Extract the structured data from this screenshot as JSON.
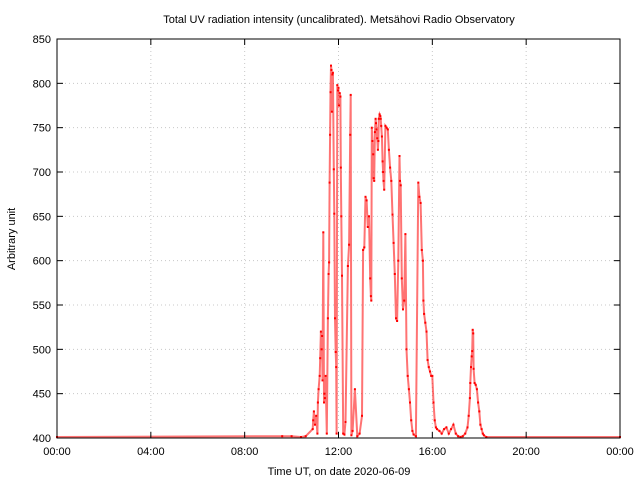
{
  "chart_data": {
    "type": "scatter",
    "title": "Total UV radiation intensity (uncalibrated). Metsähovi Radio Observatory",
    "xlabel": "Time UT, on date 2020-06-09",
    "ylabel": "Arbitrary unit",
    "xlim": [
      0,
      24
    ],
    "ylim": [
      400,
      850
    ],
    "x_ticks": [
      {
        "value": 0,
        "label": "00:00"
      },
      {
        "value": 4,
        "label": "04:00"
      },
      {
        "value": 8,
        "label": "08:00"
      },
      {
        "value": 12,
        "label": "12:00"
      },
      {
        "value": 16,
        "label": "16:00"
      },
      {
        "value": 20,
        "label": "20:00"
      },
      {
        "value": 24,
        "label": "00:00"
      }
    ],
    "y_ticks": [
      400,
      450,
      500,
      550,
      600,
      650,
      700,
      750,
      800,
      850
    ],
    "grid": true,
    "marker_color": "#ff0000",
    "series": [
      {
        "points": [
          [
            0.0,
            401
          ],
          [
            9.6,
            402
          ],
          [
            10.0,
            402
          ],
          [
            10.4,
            401
          ],
          [
            10.6,
            402
          ],
          [
            10.9,
            410
          ],
          [
            10.92,
            420
          ],
          [
            10.95,
            430
          ],
          [
            11.0,
            415
          ],
          [
            11.05,
            425
          ],
          [
            11.1,
            405
          ],
          [
            11.12,
            440
          ],
          [
            11.15,
            455
          ],
          [
            11.2,
            470
          ],
          [
            11.22,
            490
          ],
          [
            11.25,
            520
          ],
          [
            11.28,
            500
          ],
          [
            11.3,
            515
          ],
          [
            11.32,
            465
          ],
          [
            11.35,
            632
          ],
          [
            11.38,
            440
          ],
          [
            11.4,
            450
          ],
          [
            11.42,
            445
          ],
          [
            11.45,
            470
          ],
          [
            11.5,
            405
          ],
          [
            11.55,
            535
          ],
          [
            11.58,
            585
          ],
          [
            11.6,
            598
          ],
          [
            11.62,
            688
          ],
          [
            11.64,
            742
          ],
          [
            11.66,
            790
          ],
          [
            11.68,
            820
          ],
          [
            11.7,
            815
          ],
          [
            11.72,
            768
          ],
          [
            11.74,
            810
          ],
          [
            11.76,
            812
          ],
          [
            11.8,
            703
          ],
          [
            11.82,
            653
          ],
          [
            11.85,
            535
          ],
          [
            11.88,
            497
          ],
          [
            11.9,
            480
          ],
          [
            11.92,
            405
          ],
          [
            11.95,
            798
          ],
          [
            11.98,
            792
          ],
          [
            12.0,
            795
          ],
          [
            12.02,
            775
          ],
          [
            12.05,
            789
          ],
          [
            12.08,
            785
          ],
          [
            12.1,
            705
          ],
          [
            12.12,
            650
          ],
          [
            12.15,
            583
          ],
          [
            12.2,
            405
          ],
          [
            12.25,
            404
          ],
          [
            12.3,
            418
          ],
          [
            12.4,
            594
          ],
          [
            12.45,
            618
          ],
          [
            12.5,
            742
          ],
          [
            12.52,
            787
          ],
          [
            12.55,
            403
          ],
          [
            12.6,
            408
          ],
          [
            12.7,
            455
          ],
          [
            12.8,
            402
          ],
          [
            12.9,
            405
          ],
          [
            13.0,
            425
          ],
          [
            13.05,
            612
          ],
          [
            13.1,
            615
          ],
          [
            13.15,
            672
          ],
          [
            13.2,
            668
          ],
          [
            13.25,
            638
          ],
          [
            13.3,
            650
          ],
          [
            13.35,
            580
          ],
          [
            13.38,
            560
          ],
          [
            13.4,
            555
          ],
          [
            13.42,
            750
          ],
          [
            13.45,
            735
          ],
          [
            13.48,
            720
          ],
          [
            13.5,
            693
          ],
          [
            13.52,
            690
          ],
          [
            13.55,
            745
          ],
          [
            13.58,
            760
          ],
          [
            13.6,
            755
          ],
          [
            13.62,
            748
          ],
          [
            13.65,
            738
          ],
          [
            13.68,
            725
          ],
          [
            13.7,
            735
          ],
          [
            13.72,
            760
          ],
          [
            13.75,
            765
          ],
          [
            13.78,
            763
          ],
          [
            13.8,
            760
          ],
          [
            13.82,
            752
          ],
          [
            13.85,
            740
          ],
          [
            13.88,
            712
          ],
          [
            13.9,
            700
          ],
          [
            13.92,
            690
          ],
          [
            13.95,
            680
          ],
          [
            14.0,
            752
          ],
          [
            14.05,
            750
          ],
          [
            14.1,
            748
          ],
          [
            14.15,
            725
          ],
          [
            14.2,
            705
          ],
          [
            14.25,
            690
          ],
          [
            14.3,
            652
          ],
          [
            14.35,
            620
          ],
          [
            14.4,
            585
          ],
          [
            14.45,
            535
          ],
          [
            14.5,
            532
          ],
          [
            14.55,
            600
          ],
          [
            14.6,
            718
          ],
          [
            14.62,
            690
          ],
          [
            14.65,
            685
          ],
          [
            14.7,
            580
          ],
          [
            14.75,
            545
          ],
          [
            14.8,
            555
          ],
          [
            14.85,
            630
          ],
          [
            14.9,
            500
          ],
          [
            14.95,
            470
          ],
          [
            15.0,
            455
          ],
          [
            15.05,
            440
          ],
          [
            15.1,
            420
          ],
          [
            15.15,
            408
          ],
          [
            15.2,
            404
          ],
          [
            15.3,
            402
          ],
          [
            15.4,
            688
          ],
          [
            15.45,
            672
          ],
          [
            15.5,
            665
          ],
          [
            15.55,
            612
          ],
          [
            15.6,
            600
          ],
          [
            15.62,
            555
          ],
          [
            15.65,
            540
          ],
          [
            15.7,
            530
          ],
          [
            15.75,
            520
          ],
          [
            15.8,
            488
          ],
          [
            15.85,
            480
          ],
          [
            15.9,
            475
          ],
          [
            15.95,
            470
          ],
          [
            16.0,
            470
          ],
          [
            16.05,
            440
          ],
          [
            16.1,
            420
          ],
          [
            16.15,
            412
          ],
          [
            16.2,
            410
          ],
          [
            16.3,
            408
          ],
          [
            16.4,
            405
          ],
          [
            16.5,
            410
          ],
          [
            16.6,
            412
          ],
          [
            16.7,
            405
          ],
          [
            16.8,
            410
          ],
          [
            16.9,
            415
          ],
          [
            17.0,
            405
          ],
          [
            17.1,
            402
          ],
          [
            17.2,
            401
          ],
          [
            17.3,
            402
          ],
          [
            17.4,
            405
          ],
          [
            17.5,
            412
          ],
          [
            17.55,
            425
          ],
          [
            17.6,
            445
          ],
          [
            17.62,
            462
          ],
          [
            17.65,
            480
          ],
          [
            17.68,
            492
          ],
          [
            17.7,
            498
          ],
          [
            17.72,
            522
          ],
          [
            17.74,
            518
          ],
          [
            17.76,
            478
          ],
          [
            17.8,
            462
          ],
          [
            17.85,
            460
          ],
          [
            17.9,
            455
          ],
          [
            17.95,
            440
          ],
          [
            18.0,
            430
          ],
          [
            18.05,
            415
          ],
          [
            18.1,
            410
          ],
          [
            18.15,
            405
          ],
          [
            18.2,
            403
          ],
          [
            18.3,
            401
          ],
          [
            24.0,
            401
          ]
        ]
      }
    ]
  }
}
